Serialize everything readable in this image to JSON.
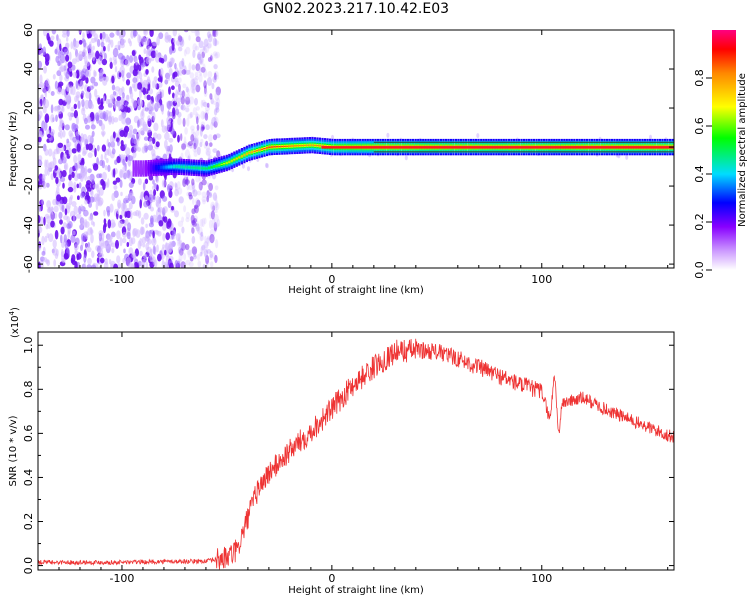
{
  "title": "GN02.2023.217.10.42.E03",
  "chart_data": [
    {
      "type": "heatmap",
      "xlabel": "Height of straight line (km)",
      "ylabel": "Frequency (Hz)",
      "xlim": [
        -140,
        163
      ],
      "ylim": [
        -62,
        60
      ],
      "xticks": [
        "-100",
        "0",
        "100"
      ],
      "yticks": [
        "60",
        "40",
        "20",
        "0",
        "-20",
        "-40",
        "-60"
      ],
      "colorbar": {
        "label": "Normalized spectral amplitude",
        "range": [
          0,
          1
        ],
        "ticks": [
          "0.0",
          "0.2",
          "0.4",
          "0.6",
          "0.8"
        ]
      },
      "noise_region_x": [
        -140,
        -58
      ],
      "ridge": {
        "description_points": [
          {
            "x": -90,
            "y": -11,
            "amp": 0.15
          },
          {
            "x": -75,
            "y": -10,
            "amp": 0.45
          },
          {
            "x": -60,
            "y": -11,
            "amp": 0.5
          },
          {
            "x": -50,
            "y": -8,
            "amp": 0.7
          },
          {
            "x": -40,
            "y": -3,
            "amp": 0.8
          },
          {
            "x": -30,
            "y": 0,
            "amp": 0.9
          },
          {
            "x": -10,
            "y": 1,
            "amp": 0.8
          },
          {
            "x": 0,
            "y": 0,
            "amp": 0.9
          },
          {
            "x": 20,
            "y": 0,
            "amp": 1.0
          },
          {
            "x": 160,
            "y": 0,
            "amp": 1.0
          }
        ]
      }
    },
    {
      "type": "line",
      "xlabel": "Height of straight line (km)",
      "ylabel": "SNR (10 * v/v)",
      "y_scale_label": "(x10",
      "y_scale_exponent": "4",
      "xlim": [
        -140,
        163
      ],
      "ylim": [
        -0.02,
        1.06
      ],
      "xticks": [
        "-100",
        "0",
        "100"
      ],
      "yticks": [
        "0.0",
        "0.2",
        "0.4",
        "0.6",
        "0.8",
        "1.0"
      ],
      "line_color": "#ee3333",
      "series": [
        {
          "x": [
            -140,
            -120,
            -100,
            -80,
            -60,
            -50,
            -45,
            -40,
            -35,
            -30,
            -20,
            -10,
            0,
            10,
            20,
            30,
            40,
            50,
            60,
            70,
            80,
            90,
            100,
            104,
            106,
            108,
            110,
            120,
            130,
            140,
            150,
            163
          ],
          "y": [
            0.015,
            0.015,
            0.015,
            0.018,
            0.02,
            0.035,
            0.07,
            0.22,
            0.35,
            0.42,
            0.52,
            0.61,
            0.71,
            0.82,
            0.9,
            0.97,
            0.98,
            0.97,
            0.94,
            0.9,
            0.86,
            0.82,
            0.79,
            0.66,
            0.88,
            0.6,
            0.74,
            0.76,
            0.71,
            0.67,
            0.63,
            0.58
          ]
        }
      ]
    }
  ],
  "colors": {
    "line": "#ee3333",
    "noise": "#7722ee",
    "colormap": [
      "#ffffff",
      "#cc99ff",
      "#8800ff",
      "#0000ff",
      "#00ddff",
      "#00ff00",
      "#ffff00",
      "#ff8800",
      "#ff0000",
      "#ff0080"
    ]
  }
}
